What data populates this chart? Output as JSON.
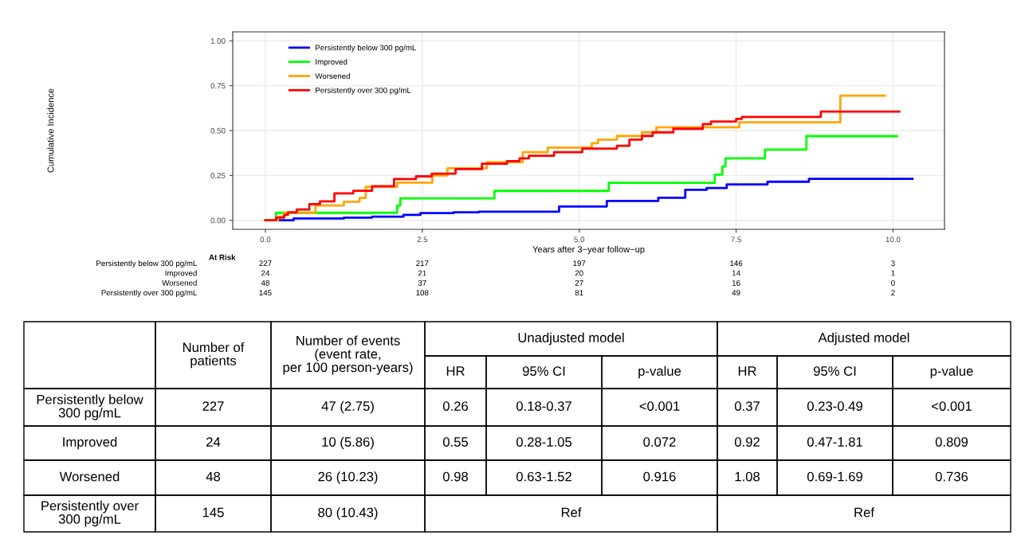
{
  "chart_data": [
    {
      "type": "step",
      "xlabel": "Years after 3−year follow−up",
      "ylabel": "Cumulative Incidence",
      "xlim": [
        -0.52,
        10.82
      ],
      "ylim": [
        -0.05,
        1.05
      ],
      "xticks": [
        {
          "value": 0,
          "label": "0.0"
        },
        {
          "value": 2.5,
          "label": "2.5"
        },
        {
          "value": 5,
          "label": "5.0"
        },
        {
          "value": 7.5,
          "label": "7.5"
        },
        {
          "value": 10,
          "label": "10.0"
        }
      ],
      "yticks": [
        {
          "value": 0,
          "label": "0.00"
        },
        {
          "value": 0.25,
          "label": "0.25"
        },
        {
          "value": 0.5,
          "label": "0.50"
        },
        {
          "value": 0.75,
          "label": "0.75"
        },
        {
          "value": 1,
          "label": "1.00"
        }
      ],
      "grid": true,
      "legend": "top left",
      "series": [
        {
          "name": "Persistently below 300 pg/mL",
          "color": "#0000ff",
          "x": [
            0,
            0.45,
            1.25,
            1.7,
            2.2,
            2.47,
            3.0,
            3.4,
            4.68,
            5.44,
            6.26,
            6.69,
            7.03,
            7.35,
            8.0,
            8.66,
            10.31
          ],
          "values": [
            0,
            0.01,
            0.015,
            0.02,
            0.03,
            0.04,
            0.045,
            0.048,
            0.077,
            0.108,
            0.126,
            0.17,
            0.18,
            0.2,
            0.215,
            0.231,
            0.231
          ]
        },
        {
          "name": "Improved",
          "color": "#00ff00",
          "x": [
            0,
            0.17,
            2.1,
            2.15,
            3.65,
            5.47,
            7.16,
            7.28,
            7.33,
            7.96,
            8.62,
            10.06
          ],
          "values": [
            0,
            0.042,
            0.083,
            0.122,
            0.164,
            0.209,
            0.254,
            0.3,
            0.345,
            0.394,
            0.469,
            0.469
          ]
        },
        {
          "name": "Worsened",
          "color": "#ffa500",
          "x": [
            0,
            0.2,
            0.3,
            0.8,
            1.25,
            1.5,
            1.6,
            2.1,
            2.66,
            2.9,
            3.53,
            4.1,
            4.5,
            5.2,
            5.3,
            5.6,
            6.0,
            6.23,
            7.55,
            9.16,
            9.87
          ],
          "values": [
            0,
            0.02,
            0.042,
            0.083,
            0.104,
            0.125,
            0.187,
            0.21,
            0.25,
            0.29,
            0.324,
            0.38,
            0.405,
            0.43,
            0.45,
            0.47,
            0.49,
            0.518,
            0.546,
            0.695,
            0.695
          ]
        },
        {
          "name": "Persistently over 300 pg/mL",
          "color": "#ff0000",
          "x": [
            0,
            0.17,
            0.3,
            0.36,
            0.5,
            0.7,
            0.87,
            1.1,
            1.4,
            1.7,
            2.05,
            2.4,
            2.65,
            3.03,
            3.45,
            3.85,
            4.05,
            4.2,
            4.6,
            5.05,
            5.6,
            5.8,
            6.0,
            6.17,
            6.5,
            6.97,
            7.1,
            7.5,
            7.59,
            8.85,
            10.1
          ],
          "values": [
            0,
            0.015,
            0.03,
            0.045,
            0.06,
            0.09,
            0.106,
            0.15,
            0.165,
            0.19,
            0.23,
            0.245,
            0.26,
            0.285,
            0.315,
            0.33,
            0.345,
            0.36,
            0.38,
            0.4,
            0.415,
            0.45,
            0.47,
            0.49,
            0.51,
            0.536,
            0.55,
            0.565,
            0.576,
            0.606,
            0.606
          ]
        }
      ]
    },
    {
      "type": "other",
      "title": "At Risk",
      "annotations": [
        "Persistently below 300 pg/mL",
        "227",
        "217",
        "197",
        "146",
        "3",
        "Improved",
        "24",
        "21",
        "20",
        "14",
        "1",
        "Worsened",
        "48",
        "37",
        "27",
        "16",
        "0",
        "Persistently over 300 pg/mL",
        "145",
        "108",
        "81",
        "49",
        "2"
      ]
    },
    {
      "type": "other",
      "annotations": [
        "Number of\npatients",
        "Number of events\n(event rate,\nper 100 person-years)",
        "Unadjusted model",
        "Adjusted model",
        "HR",
        "95% CI",
        "p-value",
        "HR",
        "95% CI",
        "p-value",
        "Persistently below\n300 pg/mL",
        "227",
        "47 (2.75)",
        "0.26",
        "0.18-0.37",
        "<0.001",
        "0.37",
        "0.23-0.49",
        "<0.001",
        "Improved",
        "24",
        "10 (5.86)",
        "0.55",
        "0.28-1.05",
        "0.072",
        "0.92",
        "0.47-1.81",
        "0.809",
        "Worsened",
        "48",
        "26 (10.23)",
        "0.98",
        "0.63-1.52",
        "0.916",
        "1.08",
        "0.69-1.69",
        "0.736",
        "Persistently over\n300 pg/mL",
        "145",
        "80 (10.43)",
        "Ref",
        "Ref"
      ]
    }
  ]
}
